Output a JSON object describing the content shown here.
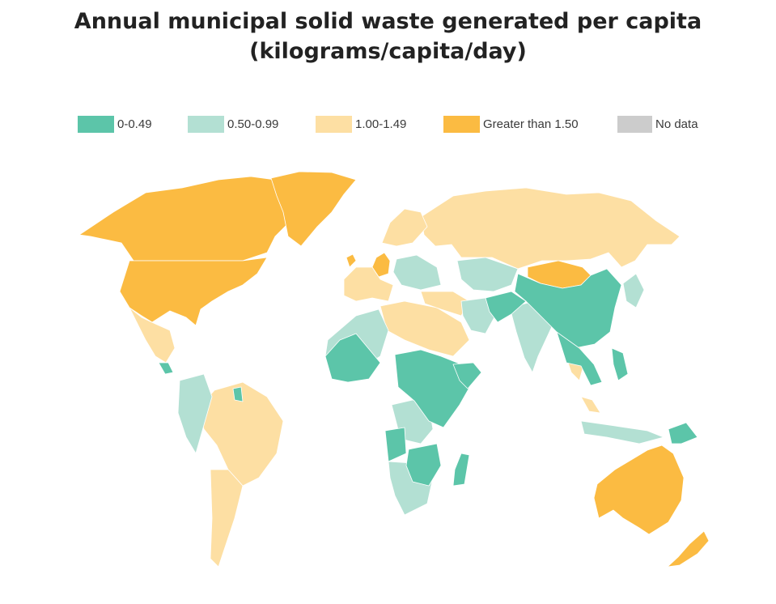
{
  "title": {
    "line1": "Annual municipal solid waste generated per capita",
    "line2": "(kilograms/capita/day)"
  },
  "legend": [
    {
      "label": "0-0.49",
      "color": "#5cc5a9"
    },
    {
      "label": "0.50-0.99",
      "color": "#b3e0d3"
    },
    {
      "label": "1.00-1.49",
      "color": "#fddfa3"
    },
    {
      "label": "Greater than 1.50",
      "color": "#fbbb42"
    },
    {
      "label": "No data",
      "color": "#cccccc"
    }
  ]
}
